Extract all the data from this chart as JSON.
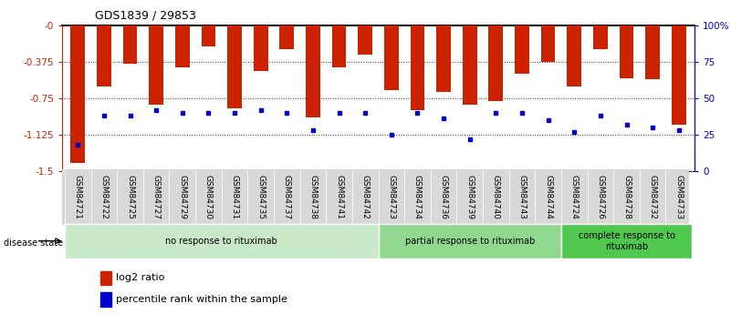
{
  "title": "GDS1839 / 29853",
  "categories": [
    "GSM84721",
    "GSM84722",
    "GSM84725",
    "GSM84727",
    "GSM84729",
    "GSM84730",
    "GSM84731",
    "GSM84735",
    "GSM84737",
    "GSM84738",
    "GSM84741",
    "GSM84742",
    "GSM84723",
    "GSM84734",
    "GSM84736",
    "GSM84739",
    "GSM84740",
    "GSM84743",
    "GSM84744",
    "GSM84724",
    "GSM84726",
    "GSM84728",
    "GSM84732",
    "GSM84733"
  ],
  "log2_values": [
    -1.42,
    -0.63,
    -0.4,
    -0.82,
    -0.43,
    -0.22,
    -0.85,
    -0.47,
    -0.25,
    -0.95,
    -0.43,
    -0.3,
    -0.67,
    -0.87,
    -0.69,
    -0.82,
    -0.78,
    -0.5,
    -0.38,
    -0.63,
    -0.25,
    -0.55,
    -0.56,
    -1.02
  ],
  "percentile_values": [
    18,
    38,
    38,
    42,
    40,
    40,
    40,
    42,
    40,
    28,
    40,
    40,
    25,
    40,
    36,
    22,
    40,
    40,
    35,
    27,
    38,
    32,
    30,
    28
  ],
  "bar_color": "#cc2200",
  "dot_color": "#0000cc",
  "ylim_left": [
    -1.5,
    0
  ],
  "ylim_right": [
    0,
    100
  ],
  "yticks_left": [
    0,
    -0.375,
    -0.75,
    -1.125,
    -1.5
  ],
  "yticks_left_labels": [
    "-0",
    "-0.375",
    "-0.75",
    "-1.125",
    "-1.5"
  ],
  "yticks_right": [
    100,
    75,
    50,
    25,
    0
  ],
  "yticks_right_labels": [
    "100%",
    "75",
    "50",
    "25",
    "0"
  ],
  "groups": [
    {
      "label": "no response to rituximab",
      "start": 0,
      "end": 11,
      "color": "#c8e8c8"
    },
    {
      "label": "partial response to rituximab",
      "start": 12,
      "end": 18,
      "color": "#90d890"
    },
    {
      "label": "complete response to\nrituximab",
      "start": 19,
      "end": 23,
      "color": "#50c850"
    }
  ],
  "disease_state_label": "disease state",
  "legend_items": [
    {
      "label": "log2 ratio",
      "color": "#cc2200"
    },
    {
      "label": "percentile rank within the sample",
      "color": "#0000cc"
    }
  ],
  "grid_color": "#333333",
  "background_color": "#ffffff",
  "bar_width": 0.55,
  "tick_label_bg": "#d8d8d8"
}
